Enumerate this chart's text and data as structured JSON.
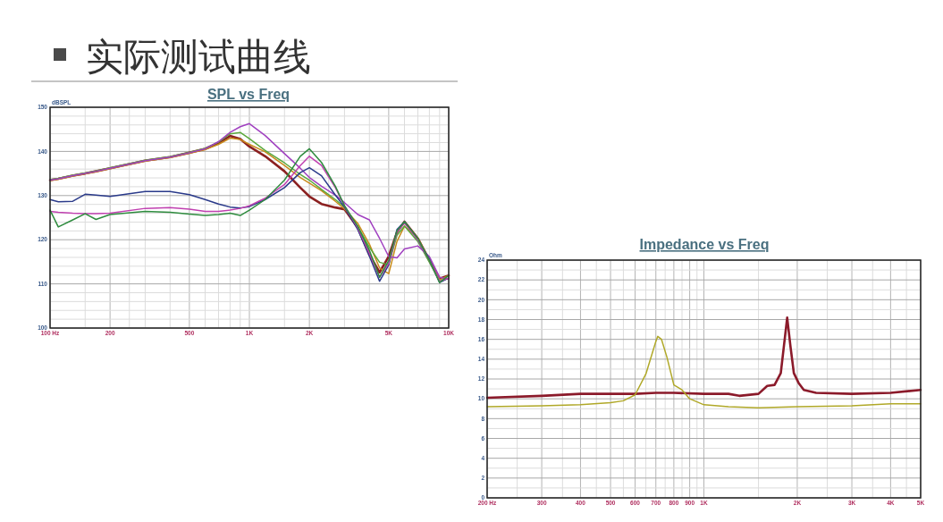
{
  "chart_data": [
    {
      "type": "other",
      "title": "实际测试曲线"
    },
    {
      "type": "line",
      "title": "SPL vs Freq",
      "ylabel": "dBSPL",
      "log": "x",
      "grid": true,
      "marker": "none",
      "line_style": "solid",
      "xlim": [
        100,
        10000
      ],
      "ylim": [
        100,
        150
      ],
      "xticks": [
        {
          "value": 100,
          "label": "100 Hz"
        },
        {
          "value": 150,
          "label": null
        },
        200,
        {
          "value": 250,
          "label": null
        },
        {
          "value": 300,
          "label": null
        },
        {
          "value": 400,
          "label": null
        },
        500,
        {
          "value": 600,
          "label": null
        },
        {
          "value": 700,
          "label": null
        },
        {
          "value": 800,
          "label": null
        },
        {
          "value": 900,
          "label": null
        },
        {
          "value": 1000,
          "label": "1K"
        },
        {
          "value": 1500,
          "label": null
        },
        {
          "value": 2000,
          "label": "2K"
        },
        {
          "value": 2500,
          "label": null
        },
        {
          "value": 3000,
          "label": null
        },
        {
          "value": 4000,
          "label": null
        },
        {
          "value": 5000,
          "label": "5K"
        },
        {
          "value": 6000,
          "label": null
        },
        {
          "value": 7000,
          "label": null
        },
        {
          "value": 8000,
          "label": null
        },
        {
          "value": 9000,
          "label": null
        },
        {
          "value": 10000,
          "label": "10K"
        }
      ],
      "yticks": [
        100,
        {
          "value": 102,
          "label": null
        },
        {
          "value": 104,
          "label": null
        },
        {
          "value": 106,
          "label": null
        },
        {
          "value": 108,
          "label": null
        },
        110,
        {
          "value": 112,
          "label": null
        },
        {
          "value": 114,
          "label": null
        },
        {
          "value": 116,
          "label": null
        },
        {
          "value": 118,
          "label": null
        },
        120,
        {
          "value": 122,
          "label": null
        },
        {
          "value": 124,
          "label": null
        },
        {
          "value": 126,
          "label": null
        },
        {
          "value": 128,
          "label": null
        },
        130,
        {
          "value": 132,
          "label": null
        },
        {
          "value": 134,
          "label": null
        },
        {
          "value": 136,
          "label": null
        },
        {
          "value": 138,
          "label": null
        },
        140,
        {
          "value": 142,
          "label": null
        },
        {
          "value": 144,
          "label": null
        },
        {
          "value": 146,
          "label": null
        },
        {
          "value": 148,
          "label": null
        },
        150
      ],
      "x": [
        100,
        110,
        130,
        150,
        170,
        200,
        300,
        400,
        500,
        600,
        700,
        800,
        900,
        1000,
        1200,
        1500,
        1800,
        2000,
        2300,
        2700,
        3000,
        3500,
        4000,
        4500,
        5000,
        5500,
        6000,
        7000,
        8000,
        9000,
        10000
      ],
      "series": [
        {
          "color": "#8b2020",
          "values": [
            133.5,
            133.8,
            134.5,
            135.0,
            135.5,
            136.2,
            137.9,
            138.7,
            139.7,
            140.6,
            141.9,
            143.5,
            142.8,
            141.1,
            138.9,
            135.5,
            131.8,
            129.8,
            128.1,
            127.3,
            126.9,
            122.7,
            116.6,
            112.6,
            116.2,
            121.7,
            124.1,
            120.3,
            115.3,
            111.2,
            111.9
          ]
        },
        {
          "color": "#c88a1a",
          "values": [
            133.4,
            133.7,
            134.4,
            134.9,
            135.4,
            136.1,
            137.8,
            138.6,
            139.6,
            140.4,
            141.6,
            143.0,
            142.7,
            141.6,
            139.9,
            136.8,
            134.1,
            132.8,
            131.1,
            128.7,
            127.0,
            123.7,
            119.0,
            113.6,
            112.3,
            119.6,
            123.1,
            120.3,
            115.6,
            110.9,
            111.9
          ]
        },
        {
          "color": "#5aa83c",
          "values": [
            133.6,
            133.9,
            134.6,
            135.1,
            135.6,
            136.3,
            138.0,
            138.8,
            139.8,
            140.7,
            142.1,
            144.0,
            144.3,
            142.9,
            140.2,
            137.4,
            134.8,
            133.5,
            131.4,
            129.1,
            127.4,
            123.0,
            118.3,
            114.9,
            114.3,
            121.0,
            123.1,
            119.6,
            114.9,
            110.6,
            111.3
          ]
        },
        {
          "color": "#a040c0",
          "values": [
            133.5,
            133.8,
            134.5,
            135.0,
            135.5,
            136.2,
            137.9,
            138.7,
            139.7,
            140.6,
            142.2,
            144.3,
            145.6,
            146.3,
            143.6,
            139.5,
            136.2,
            134.1,
            132.1,
            130.1,
            128.4,
            125.7,
            124.5,
            120.3,
            116.2,
            115.9,
            117.9,
            118.6,
            116.2,
            111.5,
            111.1
          ]
        },
        {
          "color": "#2a3a8a",
          "values": [
            129.1,
            128.6,
            128.7,
            130.3,
            130.1,
            129.8,
            130.9,
            130.9,
            130.2,
            129.1,
            128.1,
            127.4,
            127.2,
            127.5,
            129.1,
            131.8,
            135.2,
            136.3,
            134.5,
            130.1,
            127.4,
            122.3,
            116.3,
            110.6,
            114.3,
            122.3,
            124.1,
            120.0,
            115.6,
            110.3,
            111.3
          ]
        },
        {
          "color": "#c040b0",
          "values": [
            126.4,
            126.2,
            126.0,
            125.9,
            125.9,
            126.0,
            127.1,
            127.3,
            126.9,
            126.4,
            126.4,
            126.7,
            127.1,
            127.7,
            129.4,
            132.5,
            136.8,
            138.9,
            136.8,
            131.8,
            127.7,
            122.7,
            116.9,
            111.5,
            114.6,
            121.7,
            123.8,
            120.0,
            115.3,
            110.6,
            111.3
          ]
        },
        {
          "color": "#2e8b3e",
          "values": [
            126.7,
            122.9,
            124.5,
            125.9,
            124.6,
            125.7,
            126.4,
            126.2,
            125.8,
            125.5,
            125.7,
            126.0,
            125.5,
            126.7,
            129.1,
            133.5,
            138.9,
            140.6,
            137.5,
            132.1,
            127.7,
            123.0,
            117.6,
            111.5,
            115.3,
            122.0,
            124.1,
            120.3,
            115.3,
            110.3,
            111.9
          ]
        }
      ]
    },
    {
      "type": "line",
      "title": "Impedance vs Freq",
      "ylabel": "Ohm",
      "log": "x",
      "grid": true,
      "marker": "none",
      "line_style": "solid",
      "xlim": [
        200,
        5000
      ],
      "ylim": [
        0,
        24
      ],
      "xticks": [
        {
          "value": 200,
          "label": "200 Hz"
        },
        {
          "value": 250,
          "label": null
        },
        300,
        {
          "value": 350,
          "label": null
        },
        400,
        {
          "value": 450,
          "label": null
        },
        500,
        {
          "value": 550,
          "label": null
        },
        600,
        {
          "value": 650,
          "label": null
        },
        700,
        {
          "value": 750,
          "label": null
        },
        800,
        {
          "value": 850,
          "label": null
        },
        900,
        {
          "value": 950,
          "label": null
        },
        {
          "value": 1000,
          "label": "1K"
        },
        {
          "value": 1500,
          "label": null
        },
        {
          "value": 2000,
          "label": "2K"
        },
        {
          "value": 2500,
          "label": null
        },
        {
          "value": 3000,
          "label": "3K"
        },
        {
          "value": 3500,
          "label": null
        },
        {
          "value": 4000,
          "label": "4K"
        },
        {
          "value": 4500,
          "label": null
        },
        {
          "value": 5000,
          "label": "5K"
        }
      ],
      "yticks": [
        0,
        {
          "value": 1,
          "label": null
        },
        2,
        {
          "value": 3,
          "label": null
        },
        4,
        {
          "value": 5,
          "label": null
        },
        6,
        {
          "value": 7,
          "label": null
        },
        8,
        {
          "value": 9,
          "label": null
        },
        10,
        {
          "value": 11,
          "label": null
        },
        12,
        {
          "value": 13,
          "label": null
        },
        14,
        {
          "value": 15,
          "label": null
        },
        16,
        {
          "value": 17,
          "label": null
        },
        18,
        {
          "value": 19,
          "label": null
        },
        20,
        {
          "value": 21,
          "label": null
        },
        22,
        {
          "value": 23,
          "label": null
        },
        24
      ],
      "series": [
        {
          "color": "#8b1a2a",
          "x": [
            200,
            300,
            400,
            500,
            600,
            700,
            800,
            1000,
            1200,
            1300,
            1500,
            1600,
            1690,
            1770,
            1856,
            1900,
            1950,
            2020,
            2100,
            2300,
            3000,
            4000,
            5000
          ],
          "values": [
            10.1,
            10.3,
            10.5,
            10.5,
            10.5,
            10.6,
            10.6,
            10.5,
            10.5,
            10.3,
            10.5,
            11.3,
            11.4,
            12.6,
            18.2,
            15.4,
            12.6,
            11.6,
            10.9,
            10.6,
            10.5,
            10.6,
            10.9
          ]
        },
        {
          "color": "#b0a828",
          "x": [
            200,
            300,
            400,
            500,
            550,
            600,
            650,
            680,
            700,
            710,
            730,
            760,
            800,
            850,
            900,
            1000,
            1200,
            1500,
            2000,
            3000,
            4000,
            5000
          ],
          "values": [
            9.2,
            9.3,
            9.4,
            9.6,
            9.8,
            10.4,
            12.5,
            14.5,
            15.8,
            16.3,
            16.0,
            14.2,
            11.4,
            10.9,
            10.0,
            9.4,
            9.2,
            9.1,
            9.2,
            9.3,
            9.5,
            9.5
          ]
        }
      ]
    }
  ]
}
